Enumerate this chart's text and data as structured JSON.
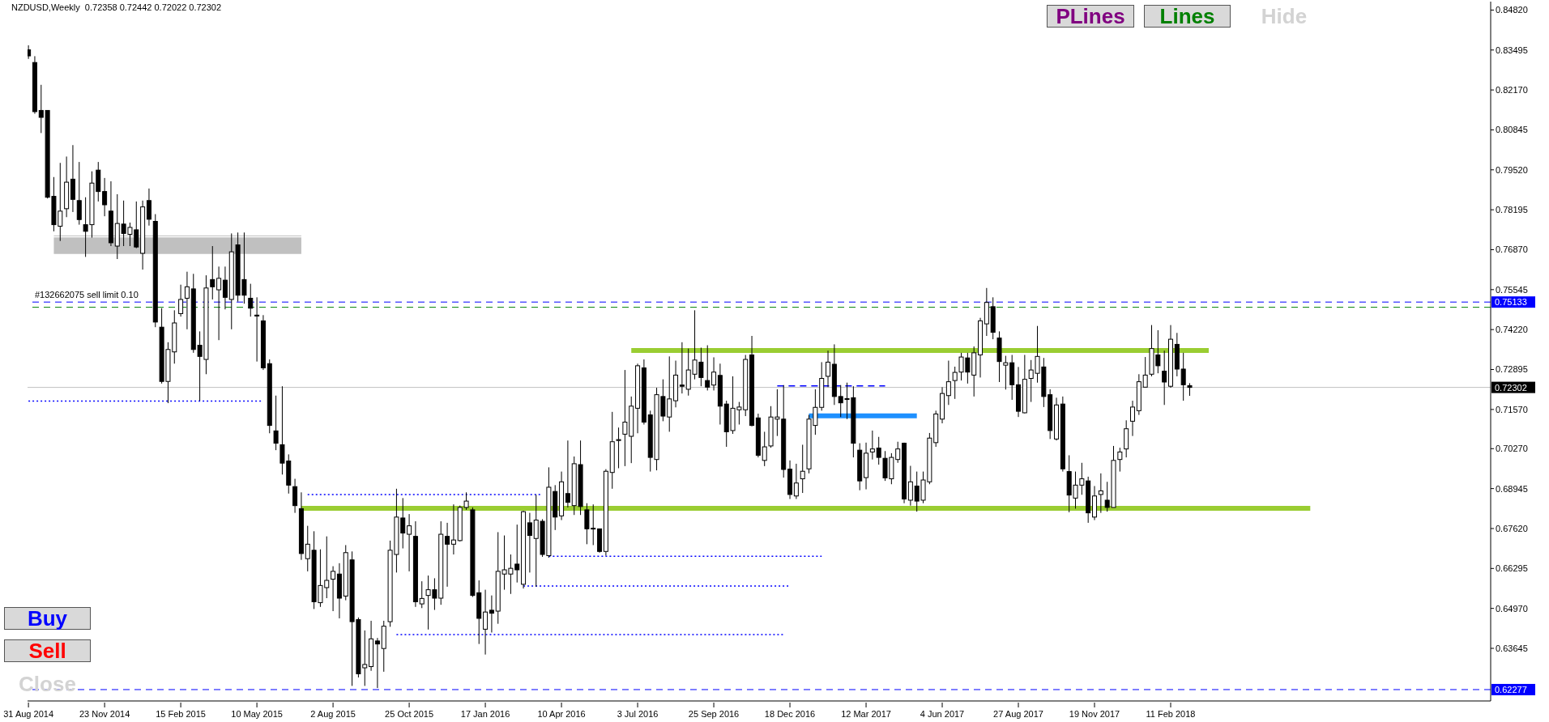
{
  "chart_data": {
    "type": "candlestick",
    "title": "NZDUSD,Weekly  0.72358 0.72442 0.72022 0.72302",
    "color": "#000000",
    "x": [
      "2014-08-31",
      "2014-09-07",
      "2014-09-14",
      "2014-09-21",
      "2014-09-28",
      "2014-10-05",
      "2014-10-12",
      "2014-10-19",
      "2014-10-26",
      "2014-11-02",
      "2014-11-09",
      "2014-11-16",
      "2014-11-23",
      "2014-11-30",
      "2014-12-07",
      "2014-12-14",
      "2014-12-21",
      "2014-12-28",
      "2015-01-04",
      "2015-01-11",
      "2015-01-18",
      "2015-01-25",
      "2015-02-01",
      "2015-02-08",
      "2015-02-15",
      "2015-02-22",
      "2015-03-01",
      "2015-03-08",
      "2015-03-15",
      "2015-03-22",
      "2015-03-29",
      "2015-04-05",
      "2015-04-12",
      "2015-04-19",
      "2015-04-26",
      "2015-05-03",
      "2015-05-10",
      "2015-05-17",
      "2015-05-24",
      "2015-05-31",
      "2015-06-07",
      "2015-06-14",
      "2015-06-21",
      "2015-06-28",
      "2015-07-05",
      "2015-07-12",
      "2015-07-19",
      "2015-07-26",
      "2015-08-02",
      "2015-08-09",
      "2015-08-16",
      "2015-08-23",
      "2015-08-30",
      "2015-09-06",
      "2015-09-13",
      "2015-09-20",
      "2015-09-27",
      "2015-10-04",
      "2015-10-11",
      "2015-10-18",
      "2015-10-25",
      "2015-11-01",
      "2015-11-08",
      "2015-11-15",
      "2015-11-22",
      "2015-11-29",
      "2015-12-06",
      "2015-12-13",
      "2015-12-20",
      "2015-12-27",
      "2016-01-03",
      "2016-01-10",
      "2016-01-17",
      "2016-01-24",
      "2016-01-31",
      "2016-02-07",
      "2016-02-14",
      "2016-02-21",
      "2016-02-28",
      "2016-03-06",
      "2016-03-13",
      "2016-03-20",
      "2016-03-27",
      "2016-04-03",
      "2016-04-10",
      "2016-04-17",
      "2016-04-24",
      "2016-05-01",
      "2016-05-08",
      "2016-05-15",
      "2016-05-22",
      "2016-05-29",
      "2016-06-05",
      "2016-06-12",
      "2016-06-19",
      "2016-06-26",
      "2016-07-03",
      "2016-07-10",
      "2016-07-17",
      "2016-07-24",
      "2016-07-31",
      "2016-08-07",
      "2016-08-14",
      "2016-08-21",
      "2016-08-28",
      "2016-09-04",
      "2016-09-11",
      "2016-09-18",
      "2016-09-25",
      "2016-10-02",
      "2016-10-09",
      "2016-10-16",
      "2016-10-23",
      "2016-10-30",
      "2016-11-06",
      "2016-11-13",
      "2016-11-20",
      "2016-11-27",
      "2016-12-04",
      "2016-12-11",
      "2016-12-18",
      "2016-12-25",
      "2017-01-01",
      "2017-01-08",
      "2017-01-15",
      "2017-01-22",
      "2017-01-29",
      "2017-02-05",
      "2017-02-12",
      "2017-02-19",
      "2017-02-26",
      "2017-03-05",
      "2017-03-12",
      "2017-03-19",
      "2017-03-26",
      "2017-04-02",
      "2017-04-09",
      "2017-04-16",
      "2017-04-23",
      "2017-04-30",
      "2017-05-07",
      "2017-05-14",
      "2017-05-21",
      "2017-05-28",
      "2017-06-04",
      "2017-06-11",
      "2017-06-18",
      "2017-06-25",
      "2017-07-02",
      "2017-07-09",
      "2017-07-16",
      "2017-07-23",
      "2017-07-30",
      "2017-08-06",
      "2017-08-13",
      "2017-08-20",
      "2017-08-27",
      "2017-09-03",
      "2017-09-10",
      "2017-09-17",
      "2017-09-24",
      "2017-10-01",
      "2017-10-08",
      "2017-10-15",
      "2017-10-22",
      "2017-10-29",
      "2017-11-05",
      "2017-11-12",
      "2017-11-19",
      "2017-11-26",
      "2017-12-03",
      "2017-12-10",
      "2017-12-17",
      "2017-12-24",
      "2017-12-31",
      "2018-01-07",
      "2018-01-14",
      "2018-01-21",
      "2018-01-28",
      "2018-02-04",
      "2018-02-11",
      "2018-02-18",
      "2018-02-25",
      "2018-03-04"
    ],
    "ohlc": [
      [
        0.835,
        0.8365,
        0.832,
        0.833
      ],
      [
        0.8308,
        0.8329,
        0.8138,
        0.8145
      ],
      [
        0.8149,
        0.8234,
        0.8074,
        0.8126
      ],
      [
        0.8149,
        0.8149,
        0.7857,
        0.7861
      ],
      [
        0.7864,
        0.7928,
        0.7748,
        0.777
      ],
      [
        0.7765,
        0.7975,
        0.7716,
        0.7815
      ],
      [
        0.7823,
        0.7996,
        0.7795,
        0.7911
      ],
      [
        0.7921,
        0.8034,
        0.7812,
        0.7854
      ],
      [
        0.785,
        0.7978,
        0.777,
        0.7787
      ],
      [
        0.777,
        0.7861,
        0.7663,
        0.7748
      ],
      [
        0.777,
        0.7947,
        0.7727,
        0.7908
      ],
      [
        0.7951,
        0.7978,
        0.7847,
        0.788
      ],
      [
        0.788,
        0.7925,
        0.7798,
        0.7836
      ],
      [
        0.7815,
        0.7914,
        0.7699,
        0.771
      ],
      [
        0.7699,
        0.7871,
        0.7656,
        0.7774
      ],
      [
        0.7772,
        0.785,
        0.7699,
        0.7741
      ],
      [
        0.7738,
        0.7777,
        0.7699,
        0.7761
      ],
      [
        0.7753,
        0.7847,
        0.7692,
        0.7696
      ],
      [
        0.7675,
        0.785,
        0.7621,
        0.7829
      ],
      [
        0.785,
        0.789,
        0.7767,
        0.7788
      ],
      [
        0.7781,
        0.7805,
        0.743,
        0.7447
      ],
      [
        0.743,
        0.7493,
        0.7243,
        0.725
      ],
      [
        0.725,
        0.738,
        0.7178,
        0.7356
      ],
      [
        0.7348,
        0.7486,
        0.7309,
        0.7444
      ],
      [
        0.7475,
        0.7571,
        0.7465,
        0.7522
      ],
      [
        0.7526,
        0.7614,
        0.7423,
        0.7564
      ],
      [
        0.7557,
        0.7607,
        0.7345,
        0.7356
      ],
      [
        0.737,
        0.7416,
        0.7186,
        0.7333
      ],
      [
        0.7323,
        0.7602,
        0.7274,
        0.756
      ],
      [
        0.7588,
        0.7699,
        0.7522,
        0.7564
      ],
      [
        0.7554,
        0.7631,
        0.7387,
        0.7592
      ],
      [
        0.7586,
        0.7631,
        0.7489,
        0.7529
      ],
      [
        0.7522,
        0.7741,
        0.7423,
        0.768
      ],
      [
        0.7703,
        0.7744,
        0.7515,
        0.7536
      ],
      [
        0.7588,
        0.7744,
        0.7508,
        0.7536
      ],
      [
        0.7526,
        0.7574,
        0.7465,
        0.7493
      ],
      [
        0.747,
        0.7529,
        0.7316,
        0.7467
      ],
      [
        0.7451,
        0.747,
        0.7288,
        0.7295
      ],
      [
        0.7309,
        0.7323,
        0.7078,
        0.7104
      ],
      [
        0.7086,
        0.7203,
        0.7022,
        0.7045
      ],
      [
        0.704,
        0.7234,
        0.6941,
        0.6979
      ],
      [
        0.6986,
        0.7008,
        0.6878,
        0.6906
      ],
      [
        0.6901,
        0.6927,
        0.6814,
        0.6838
      ],
      [
        0.6828,
        0.6882,
        0.6658,
        0.6679
      ],
      [
        0.6662,
        0.6771,
        0.662,
        0.671
      ],
      [
        0.669,
        0.6753,
        0.6495,
        0.6519
      ],
      [
        0.6516,
        0.6693,
        0.6502,
        0.6573
      ],
      [
        0.6566,
        0.6736,
        0.6531,
        0.659
      ],
      [
        0.6594,
        0.6637,
        0.6488,
        0.662
      ],
      [
        0.6611,
        0.6647,
        0.6464,
        0.6531
      ],
      [
        0.6538,
        0.6707,
        0.6524,
        0.6682
      ],
      [
        0.6658,
        0.6686,
        0.624,
        0.6453
      ],
      [
        0.646,
        0.6467,
        0.6268,
        0.628
      ],
      [
        0.63,
        0.6424,
        0.624,
        0.6311
      ],
      [
        0.6304,
        0.6456,
        0.629,
        0.6396
      ],
      [
        0.6389,
        0.6399,
        0.6233,
        0.6379
      ],
      [
        0.6364,
        0.6456,
        0.6287,
        0.6438
      ],
      [
        0.6453,
        0.6722,
        0.6436,
        0.669
      ],
      [
        0.6676,
        0.6894,
        0.6616,
        0.68
      ],
      [
        0.6797,
        0.6863,
        0.6696,
        0.6747
      ],
      [
        0.6743,
        0.681,
        0.662,
        0.6771
      ],
      [
        0.6736,
        0.6786,
        0.6502,
        0.6519
      ],
      [
        0.6512,
        0.6587,
        0.6498,
        0.653
      ],
      [
        0.654,
        0.6606,
        0.6427,
        0.6559
      ],
      [
        0.6559,
        0.6597,
        0.6492,
        0.6531
      ],
      [
        0.6531,
        0.6786,
        0.6509,
        0.6743
      ],
      [
        0.6736,
        0.6781,
        0.6569,
        0.671
      ],
      [
        0.671,
        0.6842,
        0.6676,
        0.6724
      ],
      [
        0.6722,
        0.6838,
        0.6719,
        0.6832
      ],
      [
        0.6832,
        0.6882,
        0.6824,
        0.6853
      ],
      [
        0.6824,
        0.6832,
        0.6535,
        0.654
      ],
      [
        0.6549,
        0.659,
        0.6379,
        0.6464
      ],
      [
        0.6428,
        0.6559,
        0.6344,
        0.6485
      ],
      [
        0.6491,
        0.654,
        0.6417,
        0.6481
      ],
      [
        0.6488,
        0.675,
        0.6446,
        0.662
      ],
      [
        0.6611,
        0.6739,
        0.6559,
        0.6625
      ],
      [
        0.6611,
        0.6676,
        0.6545,
        0.663
      ],
      [
        0.6644,
        0.6775,
        0.6583,
        0.6625
      ],
      [
        0.6577,
        0.6821,
        0.6563,
        0.6818
      ],
      [
        0.6781,
        0.6814,
        0.6616,
        0.6739
      ],
      [
        0.6729,
        0.6874,
        0.6569,
        0.679
      ],
      [
        0.6786,
        0.6793,
        0.6668,
        0.6676
      ],
      [
        0.6672,
        0.6965,
        0.6665,
        0.6899
      ],
      [
        0.6885,
        0.6906,
        0.6757,
        0.68
      ],
      [
        0.6804,
        0.6951,
        0.679,
        0.6917
      ],
      [
        0.6878,
        0.7054,
        0.6832,
        0.6849
      ],
      [
        0.6838,
        0.7001,
        0.6807,
        0.6977
      ],
      [
        0.6974,
        0.7054,
        0.6807,
        0.6835
      ],
      [
        0.6824,
        0.6846,
        0.671,
        0.6761
      ],
      [
        0.6763,
        0.6842,
        0.6707,
        0.6761
      ],
      [
        0.6761,
        0.6761,
        0.6682,
        0.6686
      ],
      [
        0.6686,
        0.6959,
        0.6672,
        0.6952
      ],
      [
        0.6948,
        0.7149,
        0.6894,
        0.705
      ],
      [
        0.7054,
        0.7097,
        0.6962,
        0.7057
      ],
      [
        0.7075,
        0.7288,
        0.6969,
        0.7115
      ],
      [
        0.7068,
        0.72,
        0.6979,
        0.7168
      ],
      [
        0.7161,
        0.7309,
        0.7078,
        0.7302
      ],
      [
        0.7295,
        0.7323,
        0.7107,
        0.7115
      ],
      [
        0.7139,
        0.7153,
        0.6951,
        0.6998
      ],
      [
        0.6991,
        0.7229,
        0.6955,
        0.7206
      ],
      [
        0.72,
        0.7257,
        0.7118,
        0.7135
      ],
      [
        0.7132,
        0.7333,
        0.7083,
        0.7192
      ],
      [
        0.7186,
        0.7319,
        0.7164,
        0.7271
      ],
      [
        0.7238,
        0.738,
        0.721,
        0.7234
      ],
      [
        0.7224,
        0.7359,
        0.7203,
        0.7288
      ],
      [
        0.7274,
        0.7486,
        0.7257,
        0.7321
      ],
      [
        0.7314,
        0.7362,
        0.7234,
        0.7263
      ],
      [
        0.7253,
        0.737,
        0.722,
        0.7231
      ],
      [
        0.7238,
        0.733,
        0.722,
        0.7281
      ],
      [
        0.727,
        0.7309,
        0.7107,
        0.7168
      ],
      [
        0.7175,
        0.7186,
        0.7033,
        0.7083
      ],
      [
        0.7087,
        0.7267,
        0.7076,
        0.7161
      ],
      [
        0.7156,
        0.7182,
        0.7107,
        0.7165
      ],
      [
        0.7156,
        0.7338,
        0.7135,
        0.7323
      ],
      [
        0.7338,
        0.7401,
        0.7101,
        0.7104
      ],
      [
        0.7129,
        0.7143,
        0.6998,
        0.7005
      ],
      [
        0.6988,
        0.7083,
        0.6969,
        0.7033
      ],
      [
        0.7036,
        0.7168,
        0.703,
        0.7132
      ],
      [
        0.7125,
        0.7224,
        0.7069,
        0.7132
      ],
      [
        0.7125,
        0.7238,
        0.6931,
        0.6958
      ],
      [
        0.6959,
        0.6988,
        0.686,
        0.6875
      ],
      [
        0.687,
        0.6977,
        0.686,
        0.6913
      ],
      [
        0.6927,
        0.704,
        0.688,
        0.6952
      ],
      [
        0.696,
        0.7139,
        0.6945,
        0.7125
      ],
      [
        0.7104,
        0.7224,
        0.7073,
        0.7164
      ],
      [
        0.7164,
        0.7314,
        0.7153,
        0.726
      ],
      [
        0.7267,
        0.7352,
        0.7231,
        0.7314
      ],
      [
        0.7307,
        0.7373,
        0.7172,
        0.72
      ],
      [
        0.72,
        0.7238,
        0.7132,
        0.7179
      ],
      [
        0.7193,
        0.7246,
        0.7125,
        0.7191
      ],
      [
        0.7196,
        0.7234,
        0.6998,
        0.7045
      ],
      [
        0.7022,
        0.7045,
        0.6889,
        0.692
      ],
      [
        0.6931,
        0.7047,
        0.6892,
        0.7012
      ],
      [
        0.7016,
        0.7087,
        0.6991,
        0.7026
      ],
      [
        0.7029,
        0.7066,
        0.6974,
        0.6998
      ],
      [
        0.6995,
        0.7019,
        0.692,
        0.693
      ],
      [
        0.6927,
        0.7012,
        0.6909,
        0.6998
      ],
      [
        0.6991,
        0.705,
        0.698,
        0.7026
      ],
      [
        0.7045,
        0.7047,
        0.6846,
        0.686
      ],
      [
        0.6856,
        0.697,
        0.6838,
        0.6917
      ],
      [
        0.6903,
        0.6951,
        0.6818,
        0.6853
      ],
      [
        0.6856,
        0.6951,
        0.6846,
        0.6923
      ],
      [
        0.6917,
        0.7079,
        0.6909,
        0.7062
      ],
      [
        0.7047,
        0.7153,
        0.7033,
        0.7142
      ],
      [
        0.7125,
        0.7231,
        0.7111,
        0.721
      ],
      [
        0.7203,
        0.7319,
        0.7172,
        0.7249
      ],
      [
        0.7253,
        0.7299,
        0.7192,
        0.728
      ],
      [
        0.7281,
        0.7345,
        0.7253,
        0.7331
      ],
      [
        0.7328,
        0.7345,
        0.7243,
        0.7281
      ],
      [
        0.7271,
        0.7366,
        0.72,
        0.7345
      ],
      [
        0.7338,
        0.7461,
        0.7263,
        0.7451
      ],
      [
        0.7441,
        0.756,
        0.7401,
        0.7512
      ],
      [
        0.7498,
        0.7529,
        0.739,
        0.7413
      ],
      [
        0.7394,
        0.7416,
        0.7248,
        0.7316
      ],
      [
        0.7304,
        0.7335,
        0.7223,
        0.7312
      ],
      [
        0.7312,
        0.7338,
        0.7189,
        0.7239
      ],
      [
        0.7239,
        0.7298,
        0.7132,
        0.7151
      ],
      [
        0.7146,
        0.7338,
        0.7144,
        0.7257
      ],
      [
        0.726,
        0.7321,
        0.7182,
        0.7288
      ],
      [
        0.7277,
        0.7434,
        0.7246,
        0.7333
      ],
      [
        0.7298,
        0.7328,
        0.7165,
        0.72
      ],
      [
        0.7206,
        0.7224,
        0.7059,
        0.7087
      ],
      [
        0.7059,
        0.7196,
        0.7054,
        0.7172
      ],
      [
        0.7175,
        0.72,
        0.6951,
        0.696
      ],
      [
        0.6951,
        0.7005,
        0.6816,
        0.6873
      ],
      [
        0.6863,
        0.6951,
        0.6828,
        0.6906
      ],
      [
        0.6906,
        0.698,
        0.6874,
        0.6927
      ],
      [
        0.692,
        0.6934,
        0.6781,
        0.6814
      ],
      [
        0.68,
        0.6903,
        0.679,
        0.687
      ],
      [
        0.6875,
        0.6945,
        0.6814,
        0.6887
      ],
      [
        0.6856,
        0.6917,
        0.6818,
        0.6832
      ],
      [
        0.6832,
        0.7036,
        0.6832,
        0.6988
      ],
      [
        0.6991,
        0.703,
        0.6951,
        0.7016
      ],
      [
        0.7026,
        0.7121,
        0.6998,
        0.7093
      ],
      [
        0.7118,
        0.7186,
        0.7069,
        0.7165
      ],
      [
        0.7153,
        0.7274,
        0.7139,
        0.7249
      ],
      [
        0.7231,
        0.7331,
        0.7231,
        0.7271
      ],
      [
        0.7274,
        0.7437,
        0.7267,
        0.7359
      ],
      [
        0.7338,
        0.742,
        0.7277,
        0.7302
      ],
      [
        0.7284,
        0.7352,
        0.7172,
        0.7248
      ],
      [
        0.7234,
        0.7437,
        0.7229,
        0.739
      ],
      [
        0.7373,
        0.7411,
        0.7267,
        0.7291
      ],
      [
        0.7291,
        0.7345,
        0.7186,
        0.7239
      ],
      [
        0.72358,
        0.72442,
        0.72022,
        0.72302
      ]
    ],
    "series": [
      {
        "type": "line",
        "color": "#c0c0c0",
        "line_style": "solid",
        "x": [
          "2014-09-28",
          "2015-06-28"
        ],
        "values": [
          0.7733,
          0.7733
        ],
        "lower": [
          0.7673,
          0.7673
        ],
        "upper": [
          0.7728,
          0.7728
        ]
      },
      {
        "type": "line",
        "color": "#9acd32",
        "line_style": "solid",
        "x": [
          "2016-06-26",
          "2018-03-25"
        ],
        "values": [
          0.7353,
          0.7353
        ]
      },
      {
        "type": "line",
        "color": "#9acd32",
        "line_style": "solid",
        "x": [
          "2015-06-28",
          "2018-07-15"
        ],
        "values": [
          0.6829,
          0.6829
        ]
      },
      {
        "type": "line",
        "color": "#1e90ff",
        "line_style": "solid",
        "x": [
          "2017-01-08",
          "2017-05-07"
        ],
        "values": [
          0.7136,
          0.7136
        ]
      },
      {
        "type": "line",
        "color": "#0000ff",
        "line_style": "dashed",
        "x": [
          "2016-12-04",
          "2017-04-02"
        ],
        "values": [
          0.7235,
          0.7235
        ]
      },
      {
        "type": "line",
        "color": "#0000ff",
        "line_style": "dotted",
        "x": [
          "2014-08-31",
          "2015-05-17"
        ],
        "values": [
          0.7185,
          0.7185
        ]
      },
      {
        "type": "line",
        "color": "#0000ff",
        "line_style": "dotted",
        "x": [
          "2015-07-05",
          "2016-03-20"
        ],
        "values": [
          0.6875,
          0.6875
        ]
      },
      {
        "type": "line",
        "color": "#0000ff",
        "line_style": "dotted",
        "x": [
          "2016-03-27",
          "2017-01-22"
        ],
        "values": [
          0.667,
          0.667
        ]
      },
      {
        "type": "line",
        "color": "#0000ff",
        "line_style": "dotted",
        "x": [
          "2016-02-28",
          "2016-12-18"
        ],
        "values": [
          0.6571,
          0.6571
        ]
      },
      {
        "type": "line",
        "color": "#0000ff",
        "line_style": "dotted",
        "x": [
          "2015-10-11",
          "2016-12-11"
        ],
        "values": [
          0.641,
          0.641
        ]
      }
    ],
    "ref_lines": [
      {
        "axis": "y",
        "value": 0.75133,
        "label": "0.75133",
        "color": "#0000ff",
        "line_style": "dashed"
      },
      {
        "axis": "y",
        "value": 0.7496,
        "label": null,
        "color": "#008000",
        "line_style": "dashed"
      },
      {
        "axis": "y",
        "value": 0.72302,
        "label": "0.72302",
        "color": "#c0c0c0",
        "line_style": "solid"
      },
      {
        "axis": "y",
        "value": 0.62277,
        "label": "0.62277",
        "color": "#0000ff",
        "line_style": "dashed"
      }
    ],
    "annotations": [
      "PLines",
      "Lines",
      "Hide",
      "Buy",
      "Sell",
      "Close",
      {
        "text": "#132662075 sell limit 0.10",
        "x": "2014-09-07",
        "y": 0.75133
      }
    ],
    "xlim": [
      "2014-08-30",
      "2019-01-30"
    ],
    "xticks": [
      {
        "value": "2014-08-31",
        "label": "31 Aug 2014"
      },
      {
        "value": "2014-11-23",
        "label": "23 Nov 2014"
      },
      {
        "value": "2015-02-15",
        "label": "15 Feb 2015"
      },
      {
        "value": "2015-05-10",
        "label": "10 May 2015"
      },
      {
        "value": "2015-08-02",
        "label": "2 Aug 2015"
      },
      {
        "value": "2015-10-25",
        "label": "25 Oct 2015"
      },
      {
        "value": "2016-01-17",
        "label": "17 Jan 2016"
      },
      {
        "value": "2016-04-10",
        "label": "10 Apr 2016"
      },
      {
        "value": "2016-07-03",
        "label": "3 Jul 2016"
      },
      {
        "value": "2016-09-25",
        "label": "25 Sep 2016"
      },
      {
        "value": "2016-12-18",
        "label": "18 Dec 2016"
      },
      {
        "value": "2017-03-12",
        "label": "12 Mar 2017"
      },
      {
        "value": "2017-06-04",
        "label": "4 Jun 2017"
      },
      {
        "value": "2017-08-27",
        "label": "27 Aug 2017"
      },
      {
        "value": "2017-11-19",
        "label": "19 Nov 2017"
      },
      {
        "value": "2018-02-11",
        "label": "11 Feb 2018"
      }
    ],
    "ylim": [
      0.619,
      0.851
    ],
    "yticks": [
      {
        "value": 0.8482,
        "label": "0.84820"
      },
      {
        "value": 0.83495,
        "label": "0.83495"
      },
      {
        "value": 0.8217,
        "label": "0.82170"
      },
      {
        "value": 0.80845,
        "label": "0.80845"
      },
      {
        "value": 0.7952,
        "label": "0.79520"
      },
      {
        "value": 0.78195,
        "label": "0.78195"
      },
      {
        "value": 0.7687,
        "label": "0.76870"
      },
      {
        "value": 0.75545,
        "label": "0.75545"
      },
      {
        "value": 0.7422,
        "label": "0.74220"
      },
      {
        "value": 0.72895,
        "label": "0.72895"
      },
      {
        "value": 0.7157,
        "label": "0.71570"
      },
      {
        "value": 0.7027,
        "label": "0.70270"
      },
      {
        "value": 0.68945,
        "label": "0.68945"
      },
      {
        "value": 0.6762,
        "label": "0.67620"
      },
      {
        "value": 0.66295,
        "label": "0.66295"
      },
      {
        "value": 0.6497,
        "label": "0.64970"
      },
      {
        "value": 0.63645,
        "label": "0.63645"
      }
    ]
  }
}
